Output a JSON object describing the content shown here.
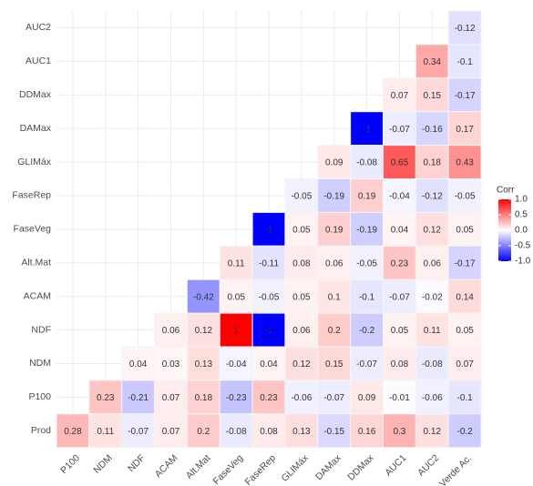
{
  "chart_data": {
    "type": "heatmap",
    "rows": [
      "AUC2",
      "AUC1",
      "DDMax",
      "DAMax",
      "GLIMáx",
      "FaseRep",
      "FaseVeg",
      "Alt.Mat",
      "ACAM",
      "NDF",
      "NDM",
      "P100",
      "Prod"
    ],
    "columns": [
      "P100",
      "NDM",
      "NDF",
      "ACAM",
      "Alt.Mat",
      "FaseVeg",
      "FaseRep",
      "GLIMáx",
      "DAMax",
      "DDMax",
      "AUC1",
      "AUC2",
      "Verde Ac."
    ],
    "values": [
      [
        null,
        null,
        null,
        null,
        null,
        null,
        null,
        null,
        null,
        null,
        null,
        null,
        -0.12
      ],
      [
        null,
        null,
        null,
        null,
        null,
        null,
        null,
        null,
        null,
        null,
        null,
        0.34,
        -0.1
      ],
      [
        null,
        null,
        null,
        null,
        null,
        null,
        null,
        null,
        null,
        null,
        0.07,
        0.15,
        -0.17
      ],
      [
        null,
        null,
        null,
        null,
        null,
        null,
        null,
        null,
        null,
        -1,
        -0.07,
        -0.16,
        0.17
      ],
      [
        null,
        null,
        null,
        null,
        null,
        null,
        null,
        null,
        0.09,
        -0.08,
        0.65,
        0.18,
        0.43
      ],
      [
        null,
        null,
        null,
        null,
        null,
        null,
        null,
        -0.05,
        -0.19,
        0.19,
        -0.04,
        -0.12,
        -0.05
      ],
      [
        null,
        null,
        null,
        null,
        null,
        null,
        -1,
        0.05,
        0.19,
        -0.19,
        0.04,
        0.12,
        0.05
      ],
      [
        null,
        null,
        null,
        null,
        null,
        0.11,
        -0.11,
        0.08,
        0.06,
        -0.05,
        0.23,
        0.06,
        -0.17
      ],
      [
        null,
        null,
        null,
        null,
        -0.42,
        0.05,
        -0.05,
        0.05,
        0.1,
        -0.1,
        -0.07,
        -0.02,
        0.14
      ],
      [
        null,
        null,
        null,
        0.06,
        0.12,
        1,
        -1,
        0.06,
        0.2,
        -0.2,
        0.05,
        0.11,
        0.05
      ],
      [
        null,
        null,
        0.04,
        0.03,
        0.13,
        -0.04,
        0.04,
        0.12,
        0.15,
        -0.07,
        0.08,
        -0.08,
        0.07
      ],
      [
        null,
        0.23,
        -0.21,
        0.07,
        0.18,
        -0.23,
        0.23,
        -0.06,
        -0.07,
        0.09,
        -0.01,
        -0.06,
        -0.1
      ],
      [
        0.28,
        0.11,
        -0.07,
        0.07,
        0.2,
        -0.08,
        0.08,
        0.13,
        -0.15,
        0.16,
        0.3,
        0.12,
        -0.2
      ]
    ],
    "legend_title": "Corr",
    "colorlim": [
      -1,
      1
    ],
    "colorticks": [
      {
        "value": 1,
        "label": "1.0"
      },
      {
        "value": 0.5,
        "label": "0.5"
      },
      {
        "value": 0,
        "label": "0.0"
      },
      {
        "value": -0.5,
        "label": "-0.5"
      },
      {
        "value": -1,
        "label": "-1.0"
      }
    ],
    "colors": {
      "low": "#0000FF",
      "mid": "#FFFFFF",
      "high": "#FF0000"
    },
    "legend": "right"
  }
}
